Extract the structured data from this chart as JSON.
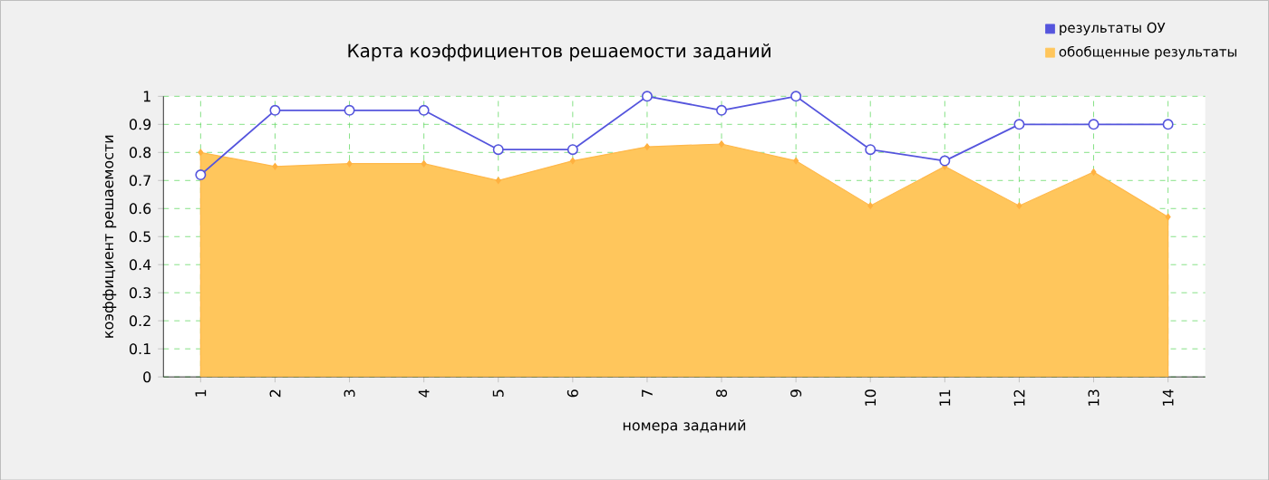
{
  "chart_data": {
    "type": "line",
    "title": "Карта коэффициентов решаемости заданий",
    "xlabel": "номера заданий",
    "ylabel": "коэффициент решаемости",
    "categories": [
      "1",
      "2",
      "3",
      "4",
      "5",
      "6",
      "7",
      "8",
      "9",
      "10",
      "11",
      "12",
      "13",
      "14"
    ],
    "series": [
      {
        "name": "результаты ОУ",
        "color": "#5555dd",
        "marker": "circle",
        "values": [
          0.72,
          0.95,
          0.95,
          0.95,
          0.81,
          0.81,
          1.0,
          0.95,
          1.0,
          0.81,
          0.77,
          0.9,
          0.9,
          0.9
        ]
      },
      {
        "name": "обобщенные результаты",
        "type": "area",
        "color": "#ffc65c",
        "marker": "diamond",
        "values": [
          0.8,
          0.75,
          0.76,
          0.76,
          0.7,
          0.77,
          0.82,
          0.83,
          0.77,
          0.61,
          0.75,
          0.61,
          0.73,
          0.57
        ]
      }
    ],
    "ylim": [
      0,
      1
    ],
    "yticks": [
      0,
      0.1,
      0.2,
      0.3,
      0.4,
      0.5,
      0.6,
      0.7,
      0.8,
      0.9,
      1
    ],
    "grid": true,
    "legend": "top right"
  }
}
